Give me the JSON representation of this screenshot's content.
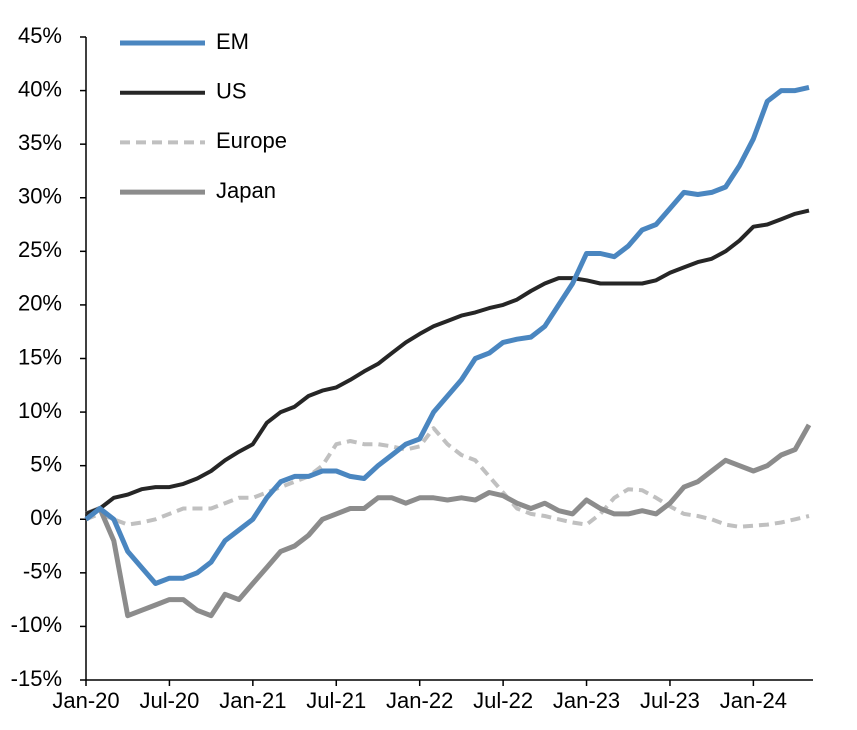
{
  "chart_data": {
    "type": "line",
    "x": [
      "2020-01",
      "2020-02",
      "2020-03",
      "2020-04",
      "2020-05",
      "2020-06",
      "2020-07",
      "2020-08",
      "2020-09",
      "2020-10",
      "2020-11",
      "2020-12",
      "2021-01",
      "2021-02",
      "2021-03",
      "2021-04",
      "2021-05",
      "2021-06",
      "2021-07",
      "2021-08",
      "2021-09",
      "2021-10",
      "2021-11",
      "2021-12",
      "2022-01",
      "2022-02",
      "2022-03",
      "2022-04",
      "2022-05",
      "2022-06",
      "2022-07",
      "2022-08",
      "2022-09",
      "2022-10",
      "2022-11",
      "2022-12",
      "2023-01",
      "2023-02",
      "2023-03",
      "2023-04",
      "2023-05",
      "2023-06",
      "2023-07",
      "2023-08",
      "2023-09",
      "2023-10",
      "2023-11",
      "2023-12",
      "2024-01",
      "2024-02",
      "2024-03",
      "2024-04",
      "2024-05"
    ],
    "series": [
      {
        "name": "EM",
        "color": "#4a86c0",
        "line_width": 5,
        "dashed": false,
        "values": [
          0,
          1,
          0,
          -3,
          -4.5,
          -6,
          -5.5,
          -5.5,
          -5,
          -4,
          -2,
          -1,
          0,
          2,
          3.5,
          4,
          4,
          4.5,
          4.5,
          4,
          3.8,
          5,
          6,
          7,
          7.5,
          10,
          11.5,
          13,
          15,
          15.5,
          16.5,
          16.8,
          17,
          18,
          20,
          22,
          24.8,
          24.8,
          24.5,
          25.5,
          27,
          27.5,
          29,
          30.5,
          30.3,
          30.5,
          31,
          33,
          35.5,
          39,
          40,
          40,
          40.3
        ]
      },
      {
        "name": "US",
        "color": "#262626",
        "line_width": 4,
        "dashed": false,
        "values": [
          0.5,
          1,
          2,
          2.3,
          2.8,
          3,
          3,
          3.3,
          3.8,
          4.5,
          5.5,
          6.3,
          7,
          9,
          10,
          10.5,
          11.5,
          12,
          12.3,
          13,
          13.8,
          14.5,
          15.5,
          16.5,
          17.3,
          18,
          18.5,
          19,
          19.3,
          19.7,
          20,
          20.5,
          21.3,
          22,
          22.5,
          22.5,
          22.3,
          22,
          22,
          22,
          22,
          22.3,
          23,
          23.5,
          24,
          24.3,
          25,
          26,
          27.3,
          27.5,
          28,
          28.5,
          28.8
        ]
      },
      {
        "name": "Europe",
        "color": "#c0c0c0",
        "line_width": 4,
        "dashed": true,
        "values": [
          0,
          0.5,
          0,
          -0.5,
          -0.3,
          0,
          0.5,
          1,
          1,
          1,
          1.5,
          2,
          2,
          2.5,
          3,
          3.5,
          4,
          5,
          7,
          7.3,
          7,
          7,
          6.8,
          6.5,
          6.8,
          8.5,
          7,
          6,
          5.5,
          4,
          2.5,
          1,
          0.5,
          0.3,
          0,
          -0.3,
          -0.5,
          0.5,
          2,
          2.8,
          2.7,
          2,
          1.2,
          0.5,
          0.3,
          0,
          -0.5,
          -0.7,
          -0.6,
          -0.5,
          -0.3,
          0,
          0.3
        ]
      },
      {
        "name": "Japan",
        "color": "#8c8c8c",
        "line_width": 5,
        "dashed": false,
        "values": [
          0.5,
          1,
          -2,
          -9,
          -8.5,
          -8,
          -7.5,
          -7.5,
          -8.5,
          -9,
          -7,
          -7.5,
          -6,
          -4.5,
          -3,
          -2.5,
          -1.5,
          0,
          0.5,
          1,
          1,
          2,
          2,
          1.5,
          2,
          2,
          1.8,
          2,
          1.8,
          2.5,
          2.2,
          1.5,
          1,
          1.5,
          0.8,
          0.5,
          1.8,
          1,
          0.5,
          0.5,
          0.8,
          0.5,
          1.5,
          3,
          3.5,
          4.5,
          5.5,
          5,
          4.5,
          5,
          6,
          6.5,
          8.8
        ]
      }
    ],
    "xlim": [
      "2020-01",
      "2024-05"
    ],
    "xticks": [
      {
        "value": "2020-01",
        "label": "Jan-20"
      },
      {
        "value": "2020-07",
        "label": "Jul-20"
      },
      {
        "value": "2021-01",
        "label": "Jan-21"
      },
      {
        "value": "2021-07",
        "label": "Jul-21"
      },
      {
        "value": "2022-01",
        "label": "Jan-22"
      },
      {
        "value": "2022-07",
        "label": "Jul-22"
      },
      {
        "value": "2023-01",
        "label": "Jan-23"
      },
      {
        "value": "2023-07",
        "label": "Jul-23"
      },
      {
        "value": "2024-01",
        "label": "Jan-24"
      }
    ],
    "ylim": [
      -15,
      45
    ],
    "yticks": [
      {
        "value": -15,
        "label": "-15%"
      },
      {
        "value": -10,
        "label": "-10%"
      },
      {
        "value": -5,
        "label": "-5%"
      },
      {
        "value": 0,
        "label": "0%"
      },
      {
        "value": 5,
        "label": "5%"
      },
      {
        "value": 10,
        "label": "10%"
      },
      {
        "value": 15,
        "label": "15%"
      },
      {
        "value": 20,
        "label": "20%"
      },
      {
        "value": 25,
        "label": "25%"
      },
      {
        "value": 30,
        "label": "30%"
      },
      {
        "value": 35,
        "label": "35%"
      },
      {
        "value": 40,
        "label": "40%"
      },
      {
        "value": 45,
        "label": "45%"
      }
    ],
    "legend": "top-left"
  }
}
